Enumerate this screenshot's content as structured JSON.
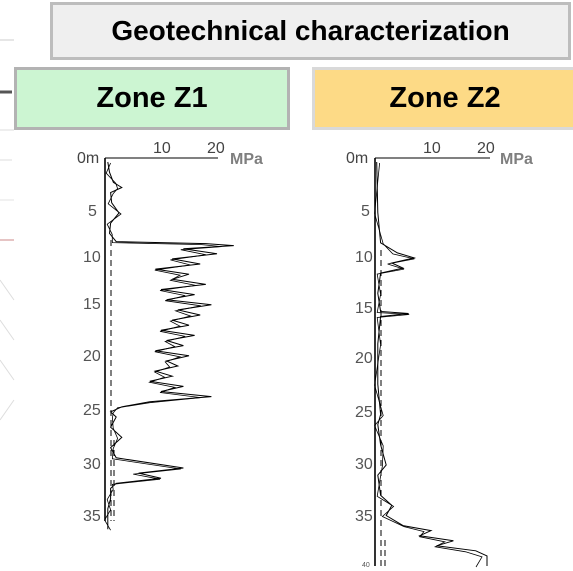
{
  "title": "Geotechnical characterization",
  "zones": [
    {
      "label": "Zone Z1",
      "color": "#ccf5d2"
    },
    {
      "label": "Zone Z2",
      "color": "#fdda86"
    }
  ],
  "axis": {
    "top_labels": [
      "0m",
      "10",
      "20"
    ],
    "unit": "MPa",
    "depth_labels_z1": [
      "5",
      "10",
      "15",
      "20",
      "25",
      "30",
      "35"
    ],
    "depth_labels_z2": [
      "5",
      "10",
      "15",
      "20",
      "25",
      "30",
      "35",
      "40"
    ]
  },
  "chart_data": [
    {
      "type": "line",
      "title": "Zone Z1",
      "xlabel": "MPa",
      "ylabel": "",
      "xlim": [
        0,
        20
      ],
      "ylim": [
        0,
        36
      ],
      "y_inverted": true,
      "series": [
        {
          "values_depth_mpa": [
            [
              0,
              0.5
            ],
            [
              1,
              0.8
            ],
            [
              2,
              1.5
            ],
            [
              2.5,
              3
            ],
            [
              3,
              1
            ],
            [
              4,
              1.2
            ],
            [
              5,
              2.5
            ],
            [
              6,
              1
            ],
            [
              7,
              0.8
            ],
            [
              7.8,
              2
            ],
            [
              8,
              18
            ],
            [
              8.2,
              23
            ],
            [
              8.5,
              14
            ],
            [
              9,
              20
            ],
            [
              9.5,
              12
            ],
            [
              10,
              17
            ],
            [
              10.5,
              9
            ],
            [
              11,
              15
            ],
            [
              11.5,
              12
            ],
            [
              12,
              18
            ],
            [
              12.5,
              10
            ],
            [
              13,
              16
            ],
            [
              13.5,
              11
            ],
            [
              14,
              19
            ],
            [
              14.5,
              13
            ],
            [
              15,
              17
            ],
            [
              15.5,
              12
            ],
            [
              16,
              15
            ],
            [
              16.5,
              10
            ],
            [
              17,
              16
            ],
            [
              17.5,
              11
            ],
            [
              18,
              14
            ],
            [
              18.5,
              9
            ],
            [
              19,
              15
            ],
            [
              19.5,
              11
            ],
            [
              20,
              13
            ],
            [
              20.5,
              9
            ],
            [
              21,
              12
            ],
            [
              21.5,
              8
            ],
            [
              22,
              14
            ],
            [
              22.5,
              10
            ],
            [
              23,
              19
            ],
            [
              23.5,
              8
            ],
            [
              24,
              3
            ],
            [
              24.5,
              1
            ],
            [
              25,
              2
            ],
            [
              26,
              1
            ],
            [
              27,
              3
            ],
            [
              28,
              1
            ],
            [
              29,
              2
            ],
            [
              30,
              14
            ],
            [
              30.5,
              6
            ],
            [
              31,
              10
            ],
            [
              31.5,
              2
            ],
            [
              32,
              1
            ],
            [
              33,
              1
            ],
            [
              34,
              0.5
            ],
            [
              35,
              0.5
            ],
            [
              36,
              0.5
            ]
          ]
        }
      ]
    },
    {
      "type": "line",
      "title": "Zone Z2",
      "xlabel": "MPa",
      "ylabel": "",
      "xlim": [
        0,
        20
      ],
      "ylim": [
        0,
        40
      ],
      "y_inverted": true,
      "series": [
        {
          "values_depth_mpa": [
            [
              0,
              0.3
            ],
            [
              5,
              0.5
            ],
            [
              8,
              1
            ],
            [
              9,
              4
            ],
            [
              9.5,
              7
            ],
            [
              10,
              3
            ],
            [
              10.5,
              5
            ],
            [
              11,
              1
            ],
            [
              13,
              0.5
            ],
            [
              14.8,
              1
            ],
            [
              15,
              6
            ],
            [
              15.3,
              1
            ],
            [
              18,
              0.5
            ],
            [
              22,
              0.5
            ],
            [
              25,
              1
            ],
            [
              26,
              0.5
            ],
            [
              28,
              1
            ],
            [
              30,
              2
            ],
            [
              31,
              0.5
            ],
            [
              33,
              1
            ],
            [
              34,
              3
            ],
            [
              35,
              2
            ],
            [
              36,
              5
            ],
            [
              36.5,
              10
            ],
            [
              37,
              8
            ],
            [
              37.5,
              14
            ],
            [
              38,
              11
            ],
            [
              38.5,
              18
            ],
            [
              39,
              20
            ],
            [
              40,
              20
            ]
          ]
        }
      ]
    }
  ]
}
